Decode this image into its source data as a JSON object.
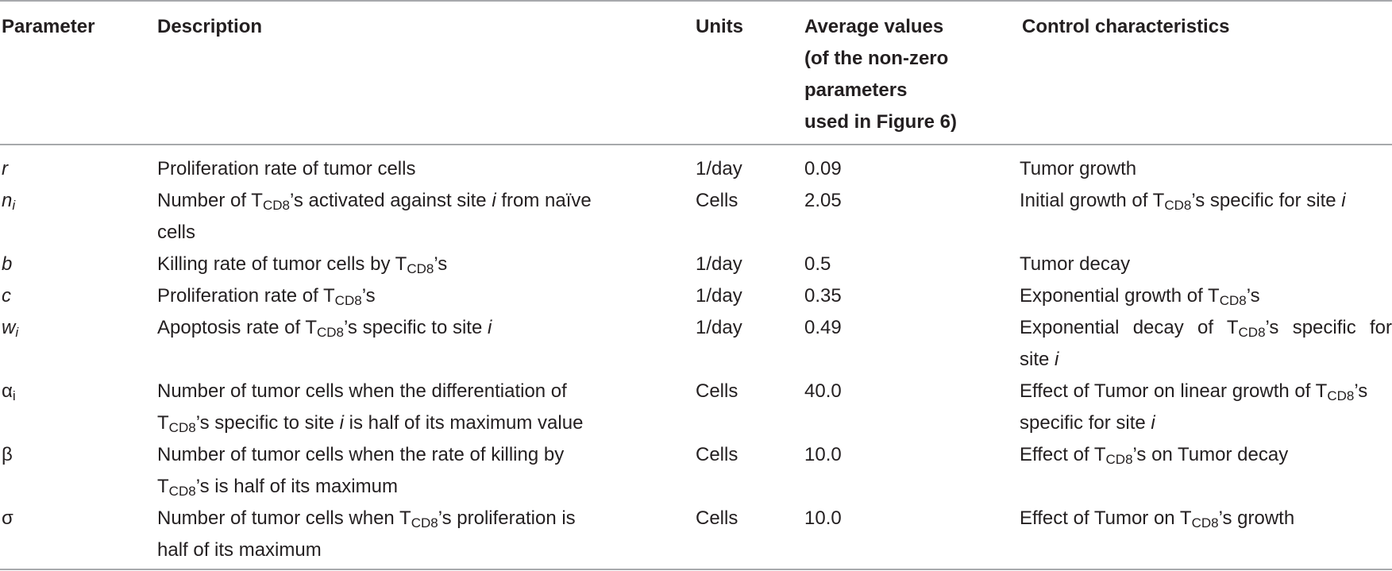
{
  "table": {
    "headers": {
      "parameter": "Parameter",
      "description": "Description",
      "units": "Units",
      "average_lines": [
        "Average values",
        "(of the non-zero",
        "parameters",
        "used in Figure 6)"
      ],
      "control": "Control characteristics"
    },
    "rows": [
      {
        "parameter": "r",
        "desc_lines": [
          [
            "Proliferation rate of tumor cells"
          ]
        ],
        "units": "1/day",
        "average": "0.09",
        "control_lines": [
          [
            "Tumor growth"
          ]
        ]
      },
      {
        "parameter": "n",
        "parameter_sub": "i",
        "desc_lines": [
          [
            "Number of T",
            "CD8",
            "’s activated against site ",
            "i",
            " from naïve"
          ],
          [
            "cells"
          ]
        ],
        "units": "Cells",
        "average": "2.05",
        "control_lines": [
          [
            "Initial growth of T",
            "CD8",
            "’s specific for site ",
            "i"
          ]
        ]
      },
      {
        "parameter": "b",
        "desc_lines": [
          [
            "Killing rate of tumor cells by T",
            "CD8",
            "’s"
          ]
        ],
        "units": "1/day",
        "average": "0.5",
        "control_lines": [
          [
            "Tumor decay"
          ]
        ]
      },
      {
        "parameter": "c",
        "desc_lines": [
          [
            "Proliferation rate of T",
            "CD8",
            "’s"
          ]
        ],
        "units": "1/day",
        "average": "0.35",
        "control_lines": [
          [
            "Exponential growth of T",
            "CD8",
            "’s"
          ]
        ]
      },
      {
        "parameter": "w",
        "parameter_sub": "i",
        "desc_lines": [
          [
            "Apoptosis rate of T",
            "CD8",
            "’s specific to site ",
            "i"
          ]
        ],
        "units": "1/day",
        "average": "0.49",
        "control_lines": [
          [
            "Exponential decay of T",
            "CD8",
            "’s specific for"
          ],
          [
            "site ",
            "",
            "",
            "i"
          ]
        ]
      },
      {
        "parameter": "α",
        "parameter_sub": "i",
        "desc_lines": [
          [
            "Number of tumor cells when the differentiation of"
          ],
          [
            "T",
            "CD8",
            "’s specific to site ",
            "i",
            " is half of its maximum value"
          ]
        ],
        "units": "Cells",
        "average": "40.0",
        "control_lines": [
          [
            "Effect of Tumor on linear growth of T",
            "CD8",
            "’s"
          ],
          [
            "specific for site ",
            "",
            "",
            "i"
          ]
        ]
      },
      {
        "parameter": "β",
        "desc_lines": [
          [
            "Number of tumor cells when the rate of killing by"
          ],
          [
            "T",
            "CD8",
            "’s is half of its maximum"
          ]
        ],
        "units": "Cells",
        "average": "10.0",
        "control_lines": [
          [
            "Effect of T",
            "CD8",
            "’s on Tumor decay"
          ]
        ]
      },
      {
        "parameter": "σ",
        "desc_lines": [
          [
            "Number of tumor cells when T",
            "CD8",
            "’s proliferation is"
          ],
          [
            "half of its maximum"
          ]
        ],
        "units": "Cells",
        "average": "10.0",
        "control_lines": [
          [
            "Effect of Tumor on T",
            "CD8",
            "’s growth"
          ]
        ]
      }
    ]
  }
}
